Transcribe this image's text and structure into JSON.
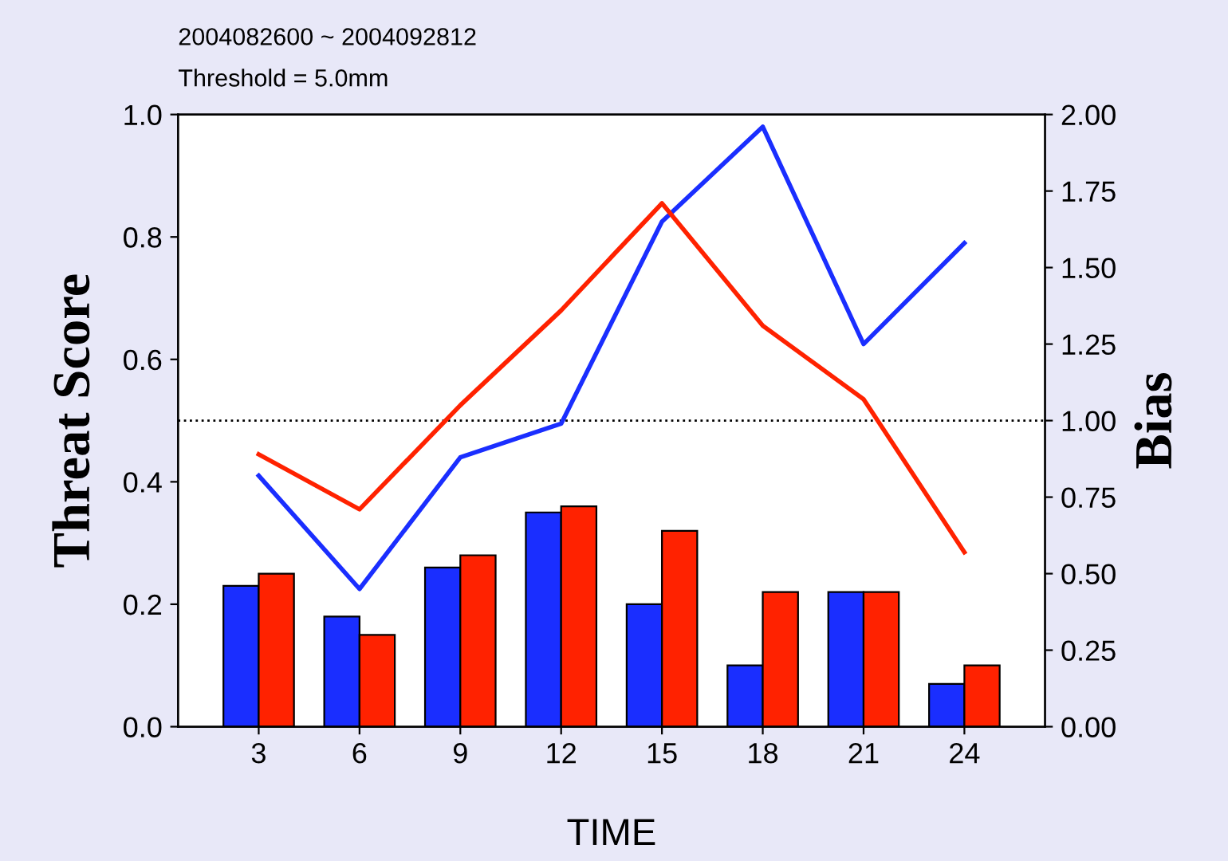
{
  "chart_data": {
    "type": "bar",
    "annotations": [
      "2004082600 ~ 2004092812",
      "Threshold = 5.0mm"
    ],
    "xlabel": "TIME",
    "ylabel": "Threat Score",
    "y2label": "Bias",
    "categories": [
      "3",
      "6",
      "9",
      "12",
      "15",
      "18",
      "21",
      "24"
    ],
    "series": [
      {
        "color": "#1a2eff",
        "values": [
          0.23,
          0.18,
          0.26,
          0.35,
          0.2,
          0.1,
          0.22,
          0.07
        ]
      },
      {
        "color": "#ff2200",
        "values": [
          0.25,
          0.15,
          0.28,
          0.36,
          0.32,
          0.22,
          0.22,
          0.1
        ]
      },
      {
        "type": "line",
        "axis": "y2",
        "color": "#1a2eff",
        "values": [
          0.82,
          0.45,
          0.88,
          0.99,
          1.65,
          1.96,
          1.25,
          1.58
        ]
      },
      {
        "type": "line",
        "axis": "y2",
        "color": "#ff2200",
        "values": [
          0.89,
          0.71,
          1.05,
          1.36,
          1.71,
          1.31,
          1.07,
          0.57
        ]
      }
    ],
    "ylim": [
      0,
      1.0
    ],
    "yticks": [
      {
        "value": 0,
        "label": "0.0"
      },
      {
        "value": 0.2,
        "label": "0.2"
      },
      {
        "value": 0.4,
        "label": "0.4"
      },
      {
        "value": 0.6,
        "label": "0.6"
      },
      {
        "value": 0.8,
        "label": "0.8"
      },
      {
        "value": 1.0,
        "label": "1.0"
      }
    ],
    "y2lim": [
      0,
      2.0
    ],
    "y2ticks": [
      {
        "value": 0,
        "label": "0.00"
      },
      {
        "value": 0.25,
        "label": "0.25"
      },
      {
        "value": 0.5,
        "label": "0.50"
      },
      {
        "value": 0.75,
        "label": "0.75"
      },
      {
        "value": 1.0,
        "label": "1.00"
      },
      {
        "value": 1.25,
        "label": "1.25"
      },
      {
        "value": 1.5,
        "label": "1.50"
      },
      {
        "value": 1.75,
        "label": "1.75"
      },
      {
        "value": 2.0,
        "label": "2.00"
      }
    ],
    "ref_lines": [
      {
        "axis": "y2",
        "value": 1.0,
        "color": "#000000",
        "line_style": "dotted"
      }
    ],
    "grid": false,
    "legend": false
  }
}
